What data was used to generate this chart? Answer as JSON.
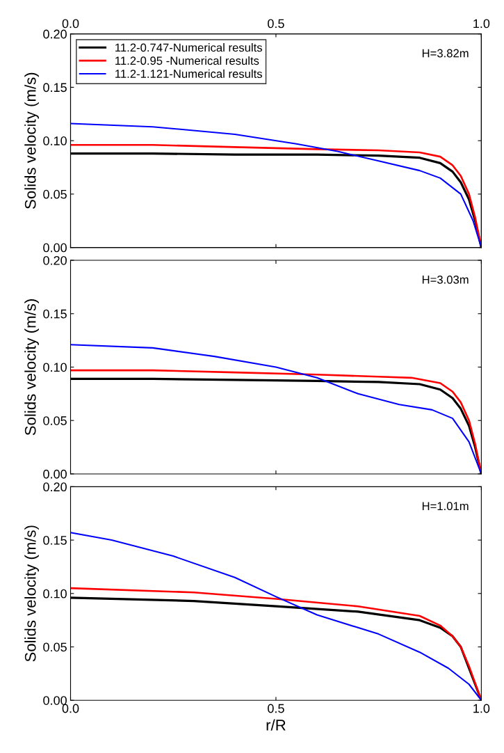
{
  "chart_data": [
    {
      "type": "line",
      "ylabel": "Solids velocity (m/s)",
      "annotations": [
        "H=3.82m"
      ],
      "legend": "top left",
      "tick_labels": "y",
      "xlim": [
        0,
        1
      ],
      "xticks": [
        0.0,
        0.5,
        1.0
      ],
      "x2lim": [
        0,
        1
      ],
      "x2ticks": [
        {
          "value": 0,
          "label": "0.0"
        },
        {
          "value": 0.5,
          "label": "0.5"
        },
        {
          "value": 1,
          "label": "1.0"
        }
      ],
      "ylim": [
        0,
        0.2
      ],
      "yticks": [
        {
          "value": 0,
          "label": "0.00"
        },
        {
          "value": 0.05,
          "label": "0.05"
        },
        {
          "value": 0.1,
          "label": "0.10"
        },
        {
          "value": 0.15,
          "label": "0.15"
        },
        {
          "value": 0.2,
          "label": "0.20"
        }
      ],
      "grid": false,
      "series": [
        {
          "name": "11.2-0.747-Numerical results",
          "color": "#000000",
          "x": [
            0,
            0.2,
            0.4,
            0.6,
            0.75,
            0.85,
            0.9,
            0.93,
            0.95,
            0.97,
            0.985,
            1.0
          ],
          "values": [
            0.088,
            0.088,
            0.087,
            0.087,
            0.086,
            0.084,
            0.079,
            0.071,
            0.061,
            0.045,
            0.025,
            0.0
          ]
        },
        {
          "name": "11.2-0.95 -Numerical results",
          "color": "#ff0000",
          "x": [
            0,
            0.2,
            0.4,
            0.6,
            0.75,
            0.85,
            0.9,
            0.93,
            0.95,
            0.97,
            0.985,
            1.0
          ],
          "values": [
            0.096,
            0.096,
            0.094,
            0.092,
            0.091,
            0.089,
            0.085,
            0.077,
            0.067,
            0.05,
            0.028,
            0.0
          ]
        },
        {
          "name": "11.2-1.121-Numerical results",
          "color": "#0000ff",
          "x": [
            0,
            0.2,
            0.4,
            0.55,
            0.65,
            0.75,
            0.85,
            0.9,
            0.95,
            0.98,
            1.0
          ],
          "values": [
            0.116,
            0.113,
            0.106,
            0.097,
            0.09,
            0.081,
            0.072,
            0.065,
            0.05,
            0.025,
            0.0
          ]
        }
      ]
    },
    {
      "type": "line",
      "ylabel": "Solids velocity (m/s)",
      "annotations": [
        "H=3.03m"
      ],
      "tick_labels": "y",
      "xlim": [
        0,
        1
      ],
      "xticks": [
        0.0,
        0.5,
        1.0
      ],
      "ylim": [
        0,
        0.2
      ],
      "yticks": [
        {
          "value": 0,
          "label": "0.00"
        },
        {
          "value": 0.05,
          "label": "0.05"
        },
        {
          "value": 0.1,
          "label": "0.10"
        },
        {
          "value": 0.15,
          "label": "0.15"
        },
        {
          "value": 0.2,
          "label": "0.20"
        }
      ],
      "grid": false,
      "series": [
        {
          "color": "#000000",
          "x": [
            0,
            0.2,
            0.4,
            0.6,
            0.75,
            0.85,
            0.9,
            0.93,
            0.95,
            0.97,
            0.985,
            1.0
          ],
          "values": [
            0.089,
            0.089,
            0.088,
            0.087,
            0.086,
            0.084,
            0.079,
            0.071,
            0.061,
            0.045,
            0.025,
            0.0
          ]
        },
        {
          "color": "#ff0000",
          "x": [
            0,
            0.2,
            0.4,
            0.6,
            0.75,
            0.83,
            0.9,
            0.93,
            0.95,
            0.97,
            0.985,
            1.0
          ],
          "values": [
            0.097,
            0.097,
            0.095,
            0.093,
            0.091,
            0.09,
            0.085,
            0.077,
            0.067,
            0.05,
            0.028,
            0.0
          ]
        },
        {
          "color": "#0000ff",
          "x": [
            0,
            0.2,
            0.35,
            0.5,
            0.6,
            0.7,
            0.8,
            0.88,
            0.93,
            0.97,
            1.0
          ],
          "values": [
            0.121,
            0.118,
            0.11,
            0.1,
            0.09,
            0.075,
            0.065,
            0.06,
            0.052,
            0.03,
            0.0
          ]
        }
      ]
    },
    {
      "type": "line",
      "xlabel": "r/R",
      "ylabel": "Solids velocity (m/s)",
      "annotations": [
        "H=1.01m"
      ],
      "xlim": [
        0,
        1
      ],
      "xticks": [
        {
          "value": 0,
          "label": "0.0"
        },
        {
          "value": 0.5,
          "label": "0.5"
        },
        {
          "value": 1,
          "label": "1.0"
        }
      ],
      "ylim": [
        0,
        0.2
      ],
      "yticks": [
        {
          "value": 0,
          "label": "0.00"
        },
        {
          "value": 0.05,
          "label": "0.05"
        },
        {
          "value": 0.1,
          "label": "0.10"
        },
        {
          "value": 0.15,
          "label": "0.15"
        },
        {
          "value": 0.2,
          "label": "0.20"
        }
      ],
      "grid": false,
      "series": [
        {
          "color": "#000000",
          "x": [
            0,
            0.3,
            0.5,
            0.7,
            0.85,
            0.9,
            0.93,
            0.95,
            0.97,
            0.985,
            1.0
          ],
          "values": [
            0.096,
            0.093,
            0.088,
            0.083,
            0.075,
            0.068,
            0.06,
            0.05,
            0.03,
            0.015,
            0.0
          ]
        },
        {
          "color": "#ff0000",
          "x": [
            0,
            0.3,
            0.5,
            0.7,
            0.85,
            0.9,
            0.93,
            0.95,
            0.97,
            0.985,
            1.0
          ],
          "values": [
            0.105,
            0.101,
            0.095,
            0.088,
            0.079,
            0.07,
            0.06,
            0.05,
            0.032,
            0.016,
            0.0
          ]
        },
        {
          "color": "#0000ff",
          "x": [
            0,
            0.1,
            0.25,
            0.4,
            0.5,
            0.6,
            0.75,
            0.85,
            0.92,
            0.97,
            1.0
          ],
          "values": [
            0.157,
            0.15,
            0.135,
            0.115,
            0.097,
            0.08,
            0.062,
            0.045,
            0.03,
            0.015,
            0.0
          ]
        }
      ]
    }
  ]
}
